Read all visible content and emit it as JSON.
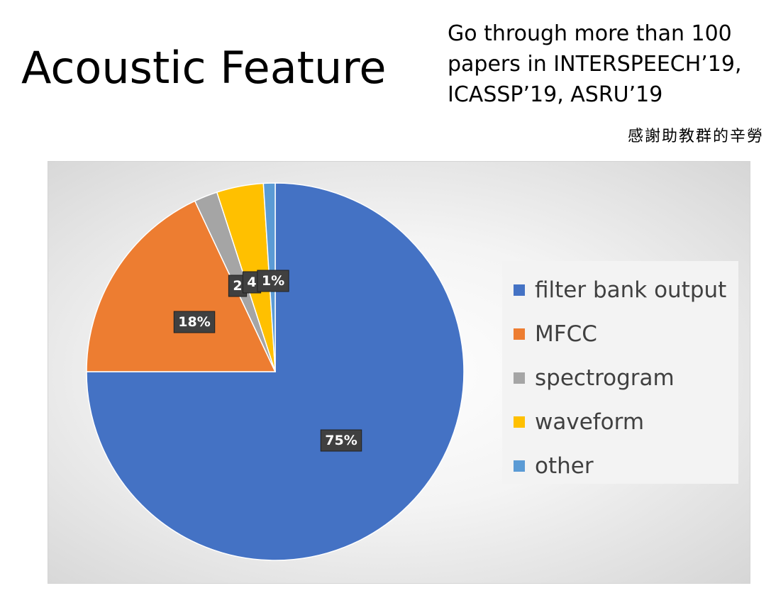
{
  "title": "Acoustic Feature",
  "subtitle_lines": [
    "Go through more than 100",
    "papers in INTERSPEECH’19,",
    "ICASSP’19, ASRU’19"
  ],
  "acknowledgement": "感謝助教群的辛勞",
  "chart_data": {
    "type": "pie",
    "title": "",
    "start_angle_deg": 0,
    "direction": "clockwise",
    "legend_position": "right",
    "slices": [
      {
        "label": "filter bank output",
        "value": 75,
        "data_label": "75%",
        "color": "#4472c4"
      },
      {
        "label": "MFCC",
        "value": 18,
        "data_label": "18%",
        "color": "#ed7d31"
      },
      {
        "label": "spectrogram",
        "value": 2,
        "data_label": "2",
        "color": "#a5a5a5"
      },
      {
        "label": "waveform",
        "value": 4,
        "data_label": "4",
        "color": "#ffc000"
      },
      {
        "label": "other",
        "value": 1,
        "data_label": "1%",
        "color": "#5b9bd5"
      }
    ]
  }
}
